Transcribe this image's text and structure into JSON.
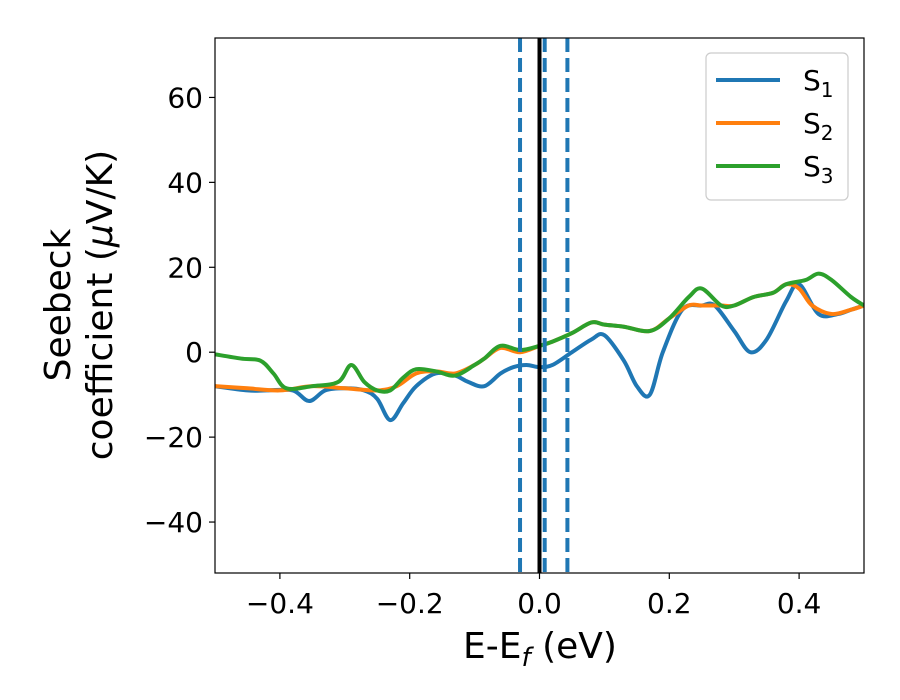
{
  "chart_data": {
    "type": "line",
    "xlabel": {
      "main": "E-E",
      "sub": "f",
      "unit": " (eV)"
    },
    "ylabel": {
      "line1": "Seebeck",
      "line2": "coefficient  (",
      "mu": "μ",
      "unit": "V/K)"
    },
    "xlim": [
      -0.5,
      0.5
    ],
    "ylim": [
      -52,
      74
    ],
    "xticks": [
      -0.4,
      -0.2,
      0.0,
      0.2,
      0.4
    ],
    "xtick_labels": [
      "−0.4",
      "−0.2",
      "0.0",
      "0.2",
      "0.4"
    ],
    "yticks": [
      -40,
      -20,
      0,
      20,
      40,
      60
    ],
    "ytick_labels": [
      "−40",
      "−20",
      "0",
      "20",
      "40",
      "60"
    ],
    "grid": false,
    "legend_position": "top-right",
    "vlines": [
      {
        "x": 0.0,
        "style": "solid",
        "color": "#000000"
      },
      {
        "x": -0.03,
        "style": "dashed",
        "color": "#1f77b4"
      },
      {
        "x": 0.008,
        "style": "dashed",
        "color": "#1f77b4"
      },
      {
        "x": 0.043,
        "style": "dashed",
        "color": "#1f77b4"
      }
    ],
    "series": [
      {
        "name": "S",
        "sub": "1",
        "color": "#1f77b4",
        "x": [
          -0.5,
          -0.45,
          -0.42,
          -0.38,
          -0.355,
          -0.33,
          -0.3,
          -0.27,
          -0.25,
          -0.23,
          -0.21,
          -0.19,
          -0.16,
          -0.13,
          -0.11,
          -0.085,
          -0.06,
          -0.04,
          -0.02,
          0.0,
          0.02,
          0.05,
          0.08,
          0.1,
          0.13,
          0.15,
          0.17,
          0.19,
          0.22,
          0.25,
          0.27,
          0.3,
          0.325,
          0.35,
          0.38,
          0.4,
          0.43,
          0.46,
          0.48,
          0.5
        ],
        "y": [
          -8,
          -9,
          -9,
          -9,
          -11.5,
          -9,
          -8.5,
          -9,
          -11,
          -16,
          -12,
          -8,
          -5,
          -5.5,
          -7,
          -8,
          -5,
          -3.5,
          -3,
          -3.5,
          -3,
          0,
          3,
          4,
          -2,
          -8,
          -10,
          0,
          10,
          11,
          11,
          5,
          0,
          3,
          12,
          16,
          9,
          9,
          10,
          11
        ]
      },
      {
        "name": "S",
        "sub": "2",
        "color": "#ff7f0e",
        "x": [
          -0.5,
          -0.45,
          -0.4,
          -0.35,
          -0.3,
          -0.25,
          -0.22,
          -0.19,
          -0.16,
          -0.13,
          -0.1,
          -0.085,
          -0.06,
          -0.03,
          0.0,
          0.02,
          0.05,
          0.08,
          0.1,
          0.13,
          0.17,
          0.2,
          0.23,
          0.25,
          0.28,
          0.3,
          0.33,
          0.36,
          0.38,
          0.4,
          0.42,
          0.45,
          0.48,
          0.5
        ],
        "y": [
          -8,
          -8.5,
          -9,
          -8,
          -8.5,
          -9,
          -8,
          -5,
          -4.5,
          -5,
          -3,
          -1.5,
          1,
          0,
          1.5,
          2.5,
          4.5,
          7,
          6.5,
          6,
          5,
          8,
          11,
          11,
          11,
          11,
          13,
          14,
          16,
          15,
          11,
          9,
          10,
          11
        ]
      },
      {
        "name": "S",
        "sub": "3",
        "color": "#2ca02c",
        "x": [
          -0.5,
          -0.46,
          -0.43,
          -0.41,
          -0.39,
          -0.35,
          -0.31,
          -0.29,
          -0.27,
          -0.25,
          -0.23,
          -0.21,
          -0.19,
          -0.16,
          -0.13,
          -0.1,
          -0.085,
          -0.06,
          -0.03,
          0.0,
          0.02,
          0.05,
          0.08,
          0.1,
          0.13,
          0.17,
          0.2,
          0.23,
          0.25,
          0.28,
          0.3,
          0.33,
          0.36,
          0.38,
          0.41,
          0.43,
          0.45,
          0.48,
          0.5
        ],
        "y": [
          -0.5,
          -1.5,
          -2,
          -5,
          -8.5,
          -8,
          -7,
          -3,
          -7,
          -9,
          -9,
          -6,
          -4,
          -4.5,
          -5.5,
          -3,
          -1.5,
          1.5,
          0.5,
          1.5,
          2.5,
          4.5,
          7,
          6.5,
          6,
          5,
          8,
          13,
          15,
          11,
          11,
          13,
          14,
          16,
          17,
          18.5,
          17,
          13,
          11
        ]
      }
    ]
  }
}
